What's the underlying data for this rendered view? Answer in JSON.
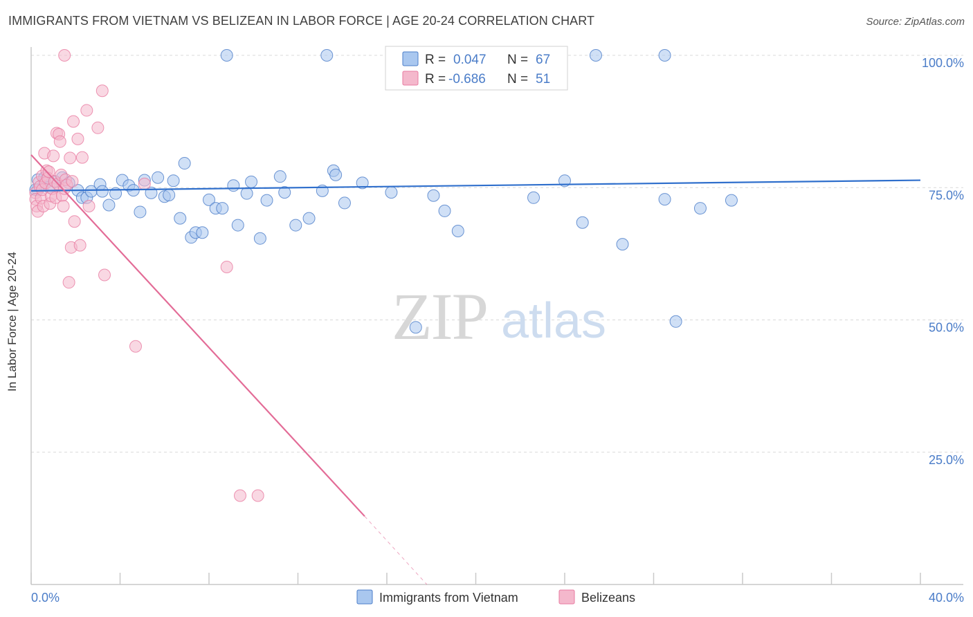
{
  "header": {
    "title": "IMMIGRANTS FROM VIETNAM VS BELIZEAN IN LABOR FORCE | AGE 20-24 CORRELATION CHART",
    "source": "Source: ZipAtlas.com"
  },
  "colors": {
    "blue": "#4a7cc8",
    "blue_fill": "#a9c7ef",
    "blue_line": "#2f6fcc",
    "pink": "#e87aa0",
    "pink_fill": "#f4b8cc",
    "pink_line": "#e36c97",
    "grid": "#d9d9d9",
    "axis": "#c9c9c9"
  },
  "watermark": {
    "zip": "ZIP",
    "atlas": "atlas"
  },
  "legend_top": {
    "rows": [
      {
        "series": "blue",
        "r_label": "R =",
        "r_value": "0.047",
        "n_label": "N =",
        "n_value": "67"
      },
      {
        "series": "pink",
        "r_label": "R =",
        "r_value": "-0.686",
        "n_label": "N =",
        "n_value": "51"
      }
    ]
  },
  "chart_data": {
    "type": "scatter",
    "title": "IMMIGRANTS FROM VIETNAM VS BELIZEAN IN LABOR FORCE | AGE 20-24 CORRELATION CHART",
    "xlabel": "",
    "ylabel": "In Labor Force | Age 20-24",
    "xlim": [
      0,
      40
    ],
    "ylim": [
      0,
      100
    ],
    "x_tick_labels": [
      {
        "value": 0,
        "label": "0.0%"
      },
      {
        "value": 40,
        "label": "40.0%"
      }
    ],
    "y_tick_labels": [
      {
        "value": 100,
        "label": "100.0%"
      },
      {
        "value": 75,
        "label": "75.0%"
      },
      {
        "value": 50,
        "label": "50.0%"
      },
      {
        "value": 25,
        "label": "25.0%"
      }
    ],
    "series": [
      {
        "name": "Immigrants from Vietnam",
        "color": "blue",
        "r": 0.047,
        "n": 67,
        "trend": {
          "x0": 0.0,
          "y0": 74.4,
          "x1": 40.0,
          "y1": 76.4,
          "dashed_to": null
        },
        "points": [
          [
            0.3,
            76.5
          ],
          [
            0.3,
            74.6
          ],
          [
            0.6,
            76.1
          ],
          [
            0.6,
            76.9
          ],
          [
            0.8,
            75.1
          ],
          [
            1.1,
            76.1
          ],
          [
            1.4,
            76.9
          ],
          [
            1.7,
            75.9
          ],
          [
            2.1,
            74.5
          ],
          [
            2.3,
            73.1
          ],
          [
            2.5,
            73.1
          ],
          [
            2.7,
            74.3
          ],
          [
            3.1,
            75.6
          ],
          [
            3.2,
            74.3
          ],
          [
            3.5,
            71.7
          ],
          [
            3.8,
            73.9
          ],
          [
            4.1,
            76.4
          ],
          [
            4.4,
            75.4
          ],
          [
            4.6,
            74.5
          ],
          [
            4.9,
            70.4
          ],
          [
            5.1,
            76.4
          ],
          [
            5.4,
            74.0
          ],
          [
            5.7,
            76.9
          ],
          [
            6.0,
            73.3
          ],
          [
            6.2,
            73.6
          ],
          [
            6.4,
            76.3
          ],
          [
            6.7,
            69.2
          ],
          [
            6.9,
            79.6
          ],
          [
            7.2,
            65.6
          ],
          [
            7.4,
            66.5
          ],
          [
            7.7,
            66.5
          ],
          [
            8.0,
            72.7
          ],
          [
            8.3,
            71.1
          ],
          [
            8.6,
            71.1
          ],
          [
            8.8,
            100.0
          ],
          [
            9.1,
            75.4
          ],
          [
            9.3,
            67.9
          ],
          [
            9.7,
            73.9
          ],
          [
            9.9,
            76.1
          ],
          [
            10.3,
            65.4
          ],
          [
            10.6,
            72.6
          ],
          [
            11.2,
            77.1
          ],
          [
            11.4,
            74.1
          ],
          [
            11.9,
            67.9
          ],
          [
            12.5,
            69.2
          ],
          [
            13.1,
            74.4
          ],
          [
            13.3,
            100.0
          ],
          [
            13.6,
            78.2
          ],
          [
            13.7,
            77.4
          ],
          [
            14.1,
            72.1
          ],
          [
            14.9,
            75.9
          ],
          [
            16.2,
            74.1
          ],
          [
            17.3,
            48.6
          ],
          [
            18.1,
            73.5
          ],
          [
            18.6,
            70.6
          ],
          [
            19.2,
            66.8
          ],
          [
            22.6,
            73.1
          ],
          [
            24.0,
            76.3
          ],
          [
            24.8,
            68.4
          ],
          [
            25.4,
            100.0
          ],
          [
            26.6,
            64.3
          ],
          [
            28.5,
            72.8
          ],
          [
            28.5,
            100.0
          ],
          [
            29.0,
            49.7
          ],
          [
            30.1,
            71.1
          ],
          [
            31.5,
            72.6
          ],
          [
            0.2,
            74.6
          ]
        ]
      },
      {
        "name": "Belizeans",
        "color": "pink",
        "r": -0.686,
        "n": 51,
        "trend": {
          "x0": 0.0,
          "y0": 81.2,
          "x1": 15.0,
          "y1": 12.9,
          "dashed_to": [
            17.8,
            0.0
          ]
        },
        "points": [
          [
            0.2,
            74.0
          ],
          [
            0.2,
            72.8
          ],
          [
            0.25,
            71.5
          ],
          [
            0.3,
            70.5
          ],
          [
            0.35,
            76.0
          ],
          [
            0.4,
            75.2
          ],
          [
            0.45,
            73.0
          ],
          [
            0.5,
            77.2
          ],
          [
            0.5,
            74.6
          ],
          [
            0.55,
            71.5
          ],
          [
            0.6,
            81.5
          ],
          [
            0.65,
            75.9
          ],
          [
            0.7,
            78.2
          ],
          [
            0.75,
            76.8
          ],
          [
            0.8,
            78.0
          ],
          [
            0.85,
            72.0
          ],
          [
            0.9,
            73.4
          ],
          [
            0.95,
            74.8
          ],
          [
            1.0,
            81.0
          ],
          [
            1.05,
            76.2
          ],
          [
            1.1,
            73.1
          ],
          [
            1.15,
            85.3
          ],
          [
            1.2,
            75.7
          ],
          [
            1.25,
            85.1
          ],
          [
            1.3,
            83.7
          ],
          [
            1.35,
            77.4
          ],
          [
            1.4,
            73.5
          ],
          [
            1.45,
            71.5
          ],
          [
            1.5,
            74.8
          ],
          [
            1.55,
            76.5
          ],
          [
            1.6,
            75.5
          ],
          [
            1.7,
            57.1
          ],
          [
            1.75,
            80.6
          ],
          [
            1.8,
            63.7
          ],
          [
            1.85,
            76.2
          ],
          [
            1.9,
            87.5
          ],
          [
            1.95,
            68.6
          ],
          [
            2.1,
            84.2
          ],
          [
            2.2,
            64.1
          ],
          [
            2.3,
            80.7
          ],
          [
            2.5,
            89.6
          ],
          [
            2.6,
            71.5
          ],
          [
            3.0,
            86.3
          ],
          [
            3.2,
            93.3
          ],
          [
            3.3,
            58.5
          ],
          [
            4.7,
            45.0
          ],
          [
            5.1,
            75.7
          ],
          [
            8.8,
            60.0
          ],
          [
            9.4,
            16.8
          ],
          [
            10.2,
            16.8
          ],
          [
            1.5,
            100.0
          ]
        ]
      }
    ]
  },
  "legend_bottom": {
    "items": [
      {
        "series": "blue",
        "label": "Immigrants from Vietnam"
      },
      {
        "series": "pink",
        "label": "Belizeans"
      }
    ]
  }
}
